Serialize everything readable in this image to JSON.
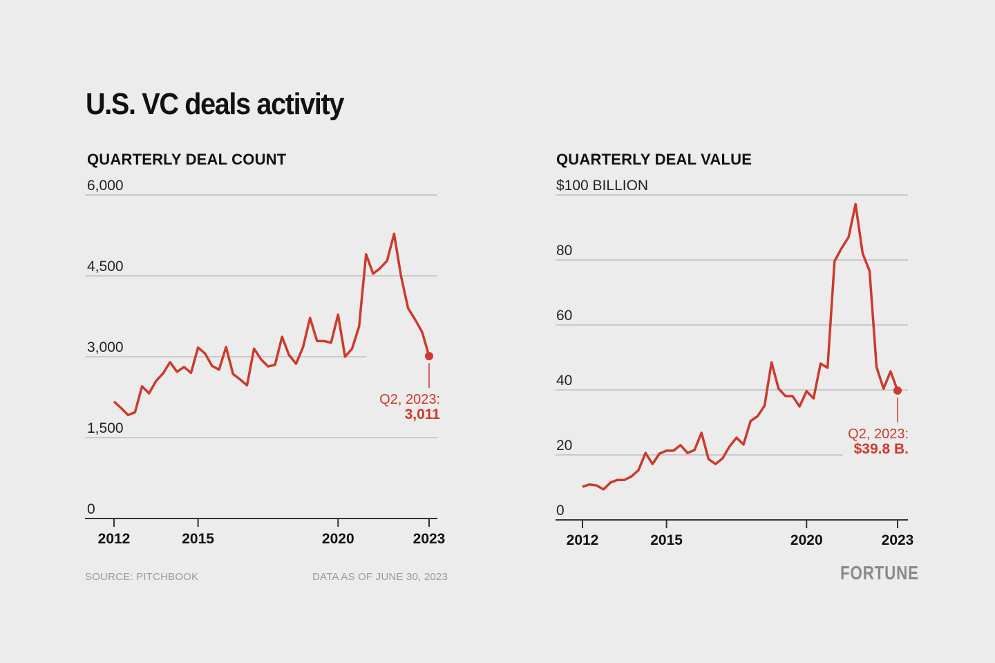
{
  "title": "U.S. VC deals activity",
  "source": "SOURCE: PITCHBOOK",
  "data_as_of": "DATA AS OF JUNE 30, 2023",
  "logo": "FORTUNE",
  "line_color": "#cc3a2c",
  "chart_data": [
    {
      "type": "line",
      "title": "QUARTERLY DEAL COUNT",
      "ylim": [
        0,
        6000
      ],
      "yticks": [
        0,
        1500,
        3000,
        4500,
        6000
      ],
      "ytick_labels": [
        "0",
        "1,500",
        "3,000",
        "4,500",
        "6,000"
      ],
      "xticks": [
        2012,
        2015,
        2020,
        2023
      ],
      "xtick_labels": [
        "2012",
        "2015",
        "2020",
        "2023"
      ],
      "x_start": "Q1 2012",
      "x_end": "Q2 2023",
      "grid": true,
      "values": [
        2170,
        2050,
        1920,
        1970,
        2450,
        2320,
        2550,
        2690,
        2900,
        2720,
        2810,
        2700,
        3170,
        3060,
        2830,
        2760,
        3180,
        2680,
        2580,
        2470,
        3150,
        2950,
        2820,
        2850,
        3370,
        3030,
        2870,
        3180,
        3720,
        3290,
        3290,
        3260,
        3780,
        3000,
        3150,
        3560,
        4900,
        4540,
        4640,
        4780,
        5280,
        4490,
        3900,
        3690,
        3460,
        3011
      ],
      "annotation": {
        "label": "Q2, 2023:",
        "value": "3,011"
      }
    },
    {
      "type": "line",
      "title": "QUARTERLY DEAL VALUE",
      "ylim": [
        0,
        100
      ],
      "yticks": [
        0,
        20,
        40,
        60,
        80,
        100
      ],
      "ytick_labels": [
        "0",
        "20",
        "40",
        "60",
        "80",
        "$100 BILLION"
      ],
      "xticks": [
        2012,
        2015,
        2020,
        2023
      ],
      "xtick_labels": [
        "2012",
        "2015",
        "2020",
        "2023"
      ],
      "x_start": "Q1 2012",
      "x_end": "Q2 2023",
      "grid": true,
      "values": [
        10.2,
        10.9,
        10.6,
        9.4,
        11.5,
        12.3,
        12.3,
        13.4,
        15.3,
        20.6,
        17.2,
        20.4,
        21.3,
        21.3,
        23,
        20.6,
        21.5,
        26.8,
        18.7,
        17.2,
        18.9,
        22.6,
        25.3,
        23.2,
        30.4,
        31.9,
        35.1,
        48.5,
        40.4,
        38.1,
        38.1,
        34.9,
        39.6,
        37.4,
        48.1,
        46.8,
        79.6,
        83.6,
        87,
        97.2,
        82.1,
        76.6,
        47,
        40.4,
        45.7,
        39.8
      ],
      "annotation": {
        "label": "Q2, 2023:",
        "value": "$39.8 B."
      }
    }
  ]
}
